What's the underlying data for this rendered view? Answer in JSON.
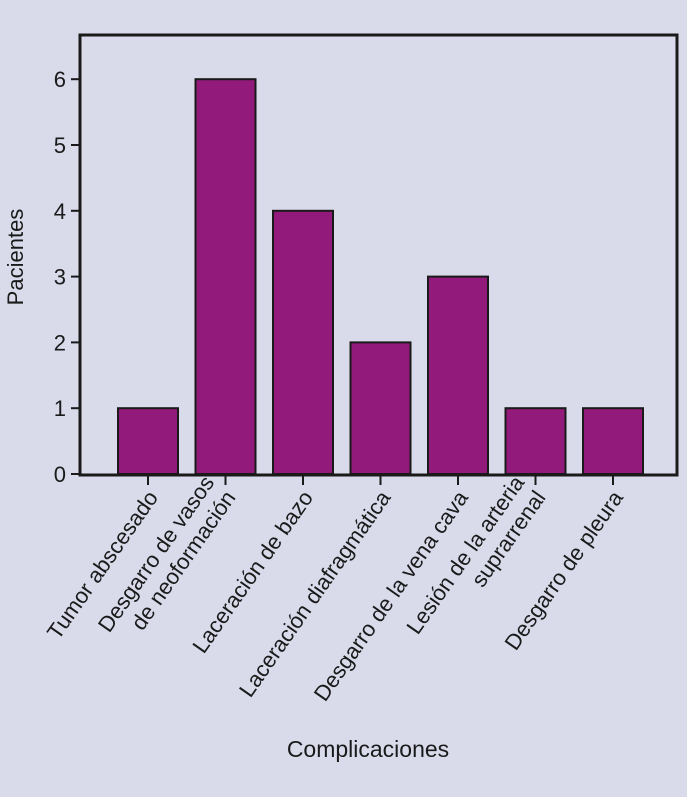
{
  "colors": {
    "background": "#d9dbeb",
    "plot_background": "#d9dbeb",
    "bar_fill": "#921a7b",
    "bar_stroke": "#1a1a1a",
    "axis": "#1a1a1a"
  },
  "chart_data": {
    "type": "bar",
    "categories": [
      "Tumor abscesado",
      "Desgarro de vasos\nde neoformación",
      "Laceración de bazo",
      "Laceración diafragmática",
      "Desgarro de la vena cava",
      "Lesión de la arteria\nsuprarrenal",
      "Desgarro de pleura"
    ],
    "values": [
      1,
      6,
      4,
      2,
      3,
      1,
      1
    ],
    "xlabel": "Complicaciones",
    "ylabel": "Pacientes",
    "yticks": [
      0,
      1,
      2,
      3,
      4,
      5,
      6
    ],
    "ylim": [
      0,
      6.7
    ],
    "grid": false,
    "legend": "none"
  }
}
